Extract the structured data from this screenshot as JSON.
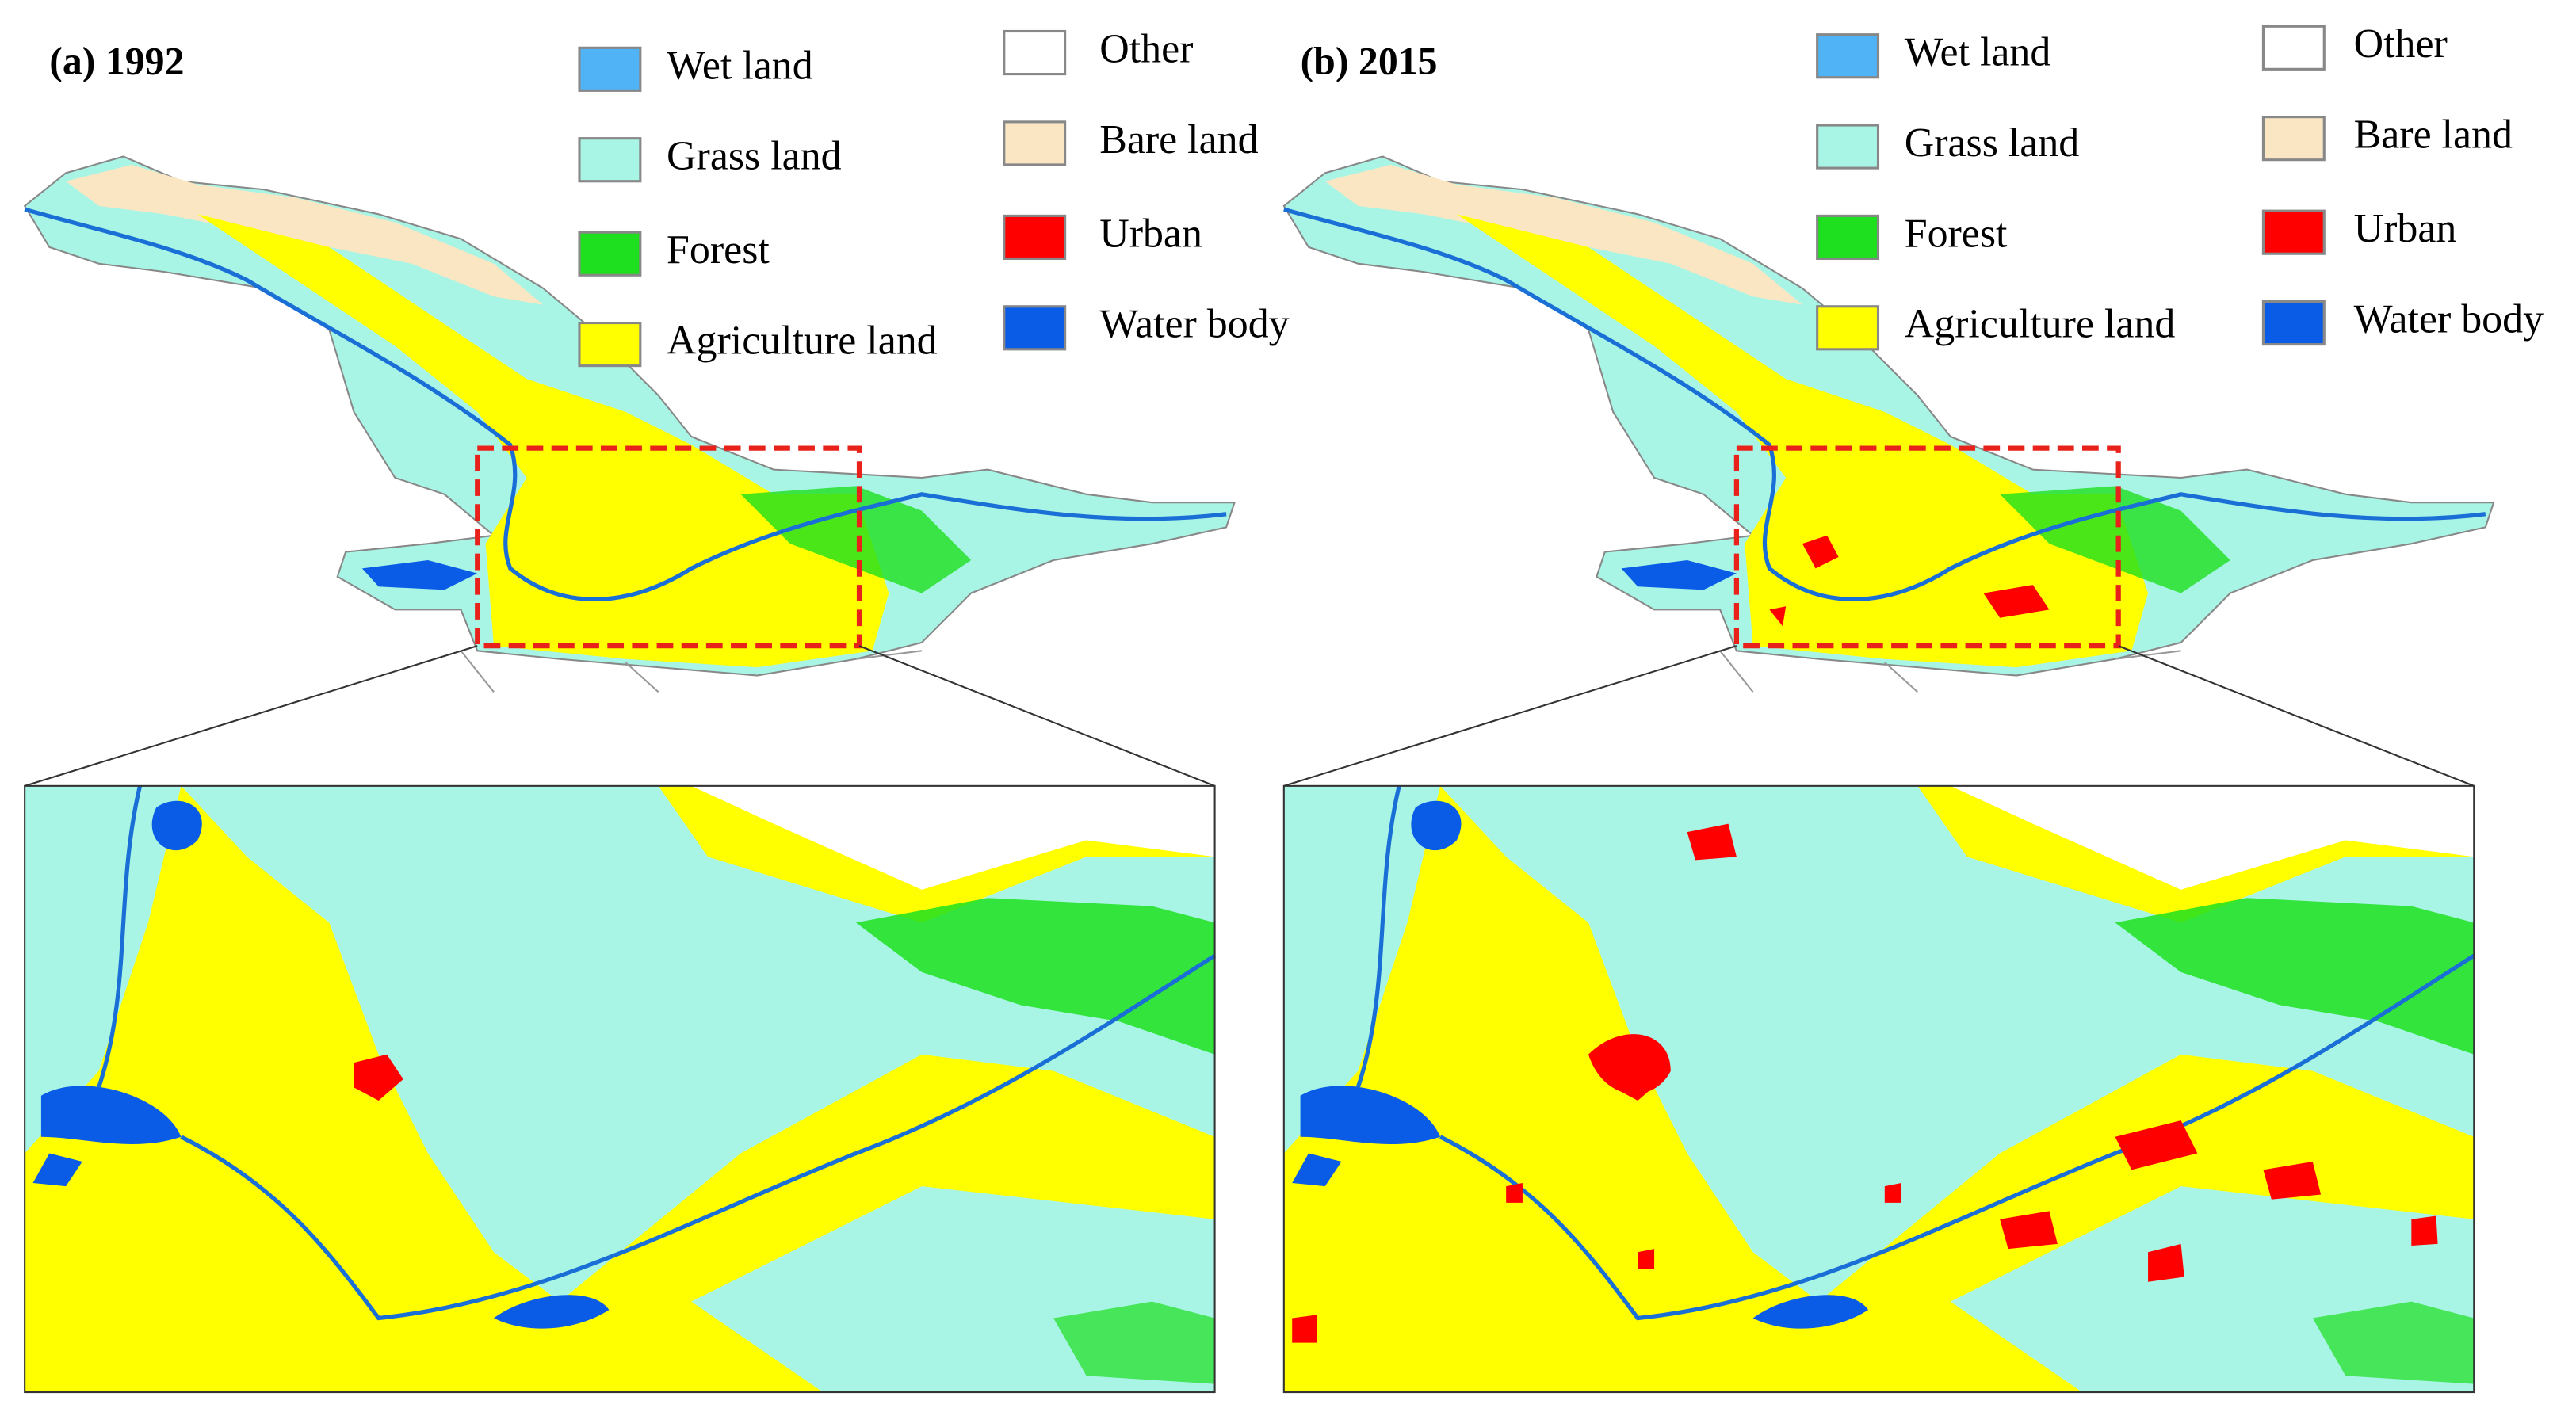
{
  "panels": [
    {
      "title": "(a) 1992",
      "legend": [
        {
          "label": "Wet land",
          "color": "#4fb3f5"
        },
        {
          "label": "Grass land",
          "color": "#a8f5e6"
        },
        {
          "label": "Forest",
          "color": "#1ee01e"
        },
        {
          "label": "Agriculture land",
          "color": "#ffff00"
        },
        {
          "label": "Other",
          "color": "#ffffff"
        },
        {
          "label": "Bare land",
          "color": "#fae6c3"
        },
        {
          "label": "Urban",
          "color": "#ff0000"
        },
        {
          "label": "Water body",
          "color": "#0a5ce6"
        }
      ]
    },
    {
      "title": "(b) 2015",
      "legend": [
        {
          "label": "Wet land",
          "color": "#4fb3f5"
        },
        {
          "label": "Grass land",
          "color": "#a8f5e6"
        },
        {
          "label": "Forest",
          "color": "#1ee01e"
        },
        {
          "label": "Agriculture land",
          "color": "#ffff00"
        },
        {
          "label": "Other",
          "color": "#ffffff"
        },
        {
          "label": "Bare land",
          "color": "#fae6c3"
        },
        {
          "label": "Urban",
          "color": "#ff0000"
        },
        {
          "label": "Water body",
          "color": "#0a5ce6"
        }
      ]
    }
  ]
}
